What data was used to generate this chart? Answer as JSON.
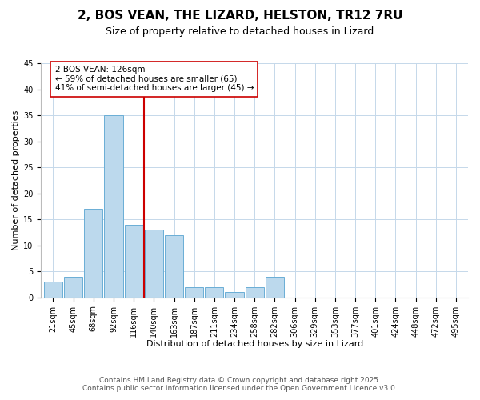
{
  "title": "2, BOS VEAN, THE LIZARD, HELSTON, TR12 7RU",
  "subtitle": "Size of property relative to detached houses in Lizard",
  "xlabel": "Distribution of detached houses by size in Lizard",
  "ylabel": "Number of detached properties",
  "bin_labels": [
    "21sqm",
    "45sqm",
    "68sqm",
    "92sqm",
    "116sqm",
    "140sqm",
    "163sqm",
    "187sqm",
    "211sqm",
    "234sqm",
    "258sqm",
    "282sqm",
    "306sqm",
    "329sqm",
    "353sqm",
    "377sqm",
    "401sqm",
    "424sqm",
    "448sqm",
    "472sqm",
    "495sqm"
  ],
  "bar_values": [
    3,
    4,
    17,
    35,
    14,
    13,
    12,
    2,
    2,
    1,
    2,
    4,
    0,
    0,
    0,
    0,
    0,
    0,
    0,
    0,
    0
  ],
  "bar_color": "#bcd9ed",
  "bar_edgecolor": "#6aaed6",
  "ylim": [
    0,
    45
  ],
  "yticks": [
    0,
    5,
    10,
    15,
    20,
    25,
    30,
    35,
    40,
    45
  ],
  "vline_color": "#cc0000",
  "annotation_text": "2 BOS VEAN: 126sqm\n← 59% of detached houses are smaller (65)\n41% of semi-detached houses are larger (45) →",
  "footer_line1": "Contains HM Land Registry data © Crown copyright and database right 2025.",
  "footer_line2": "Contains public sector information licensed under the Open Government Licence v3.0.",
  "bg_color": "#ffffff",
  "grid_color": "#c5d8ea",
  "title_fontsize": 11,
  "subtitle_fontsize": 9,
  "axis_label_fontsize": 8,
  "tick_fontsize": 7,
  "annotation_fontsize": 7.5,
  "footer_fontsize": 6.5
}
